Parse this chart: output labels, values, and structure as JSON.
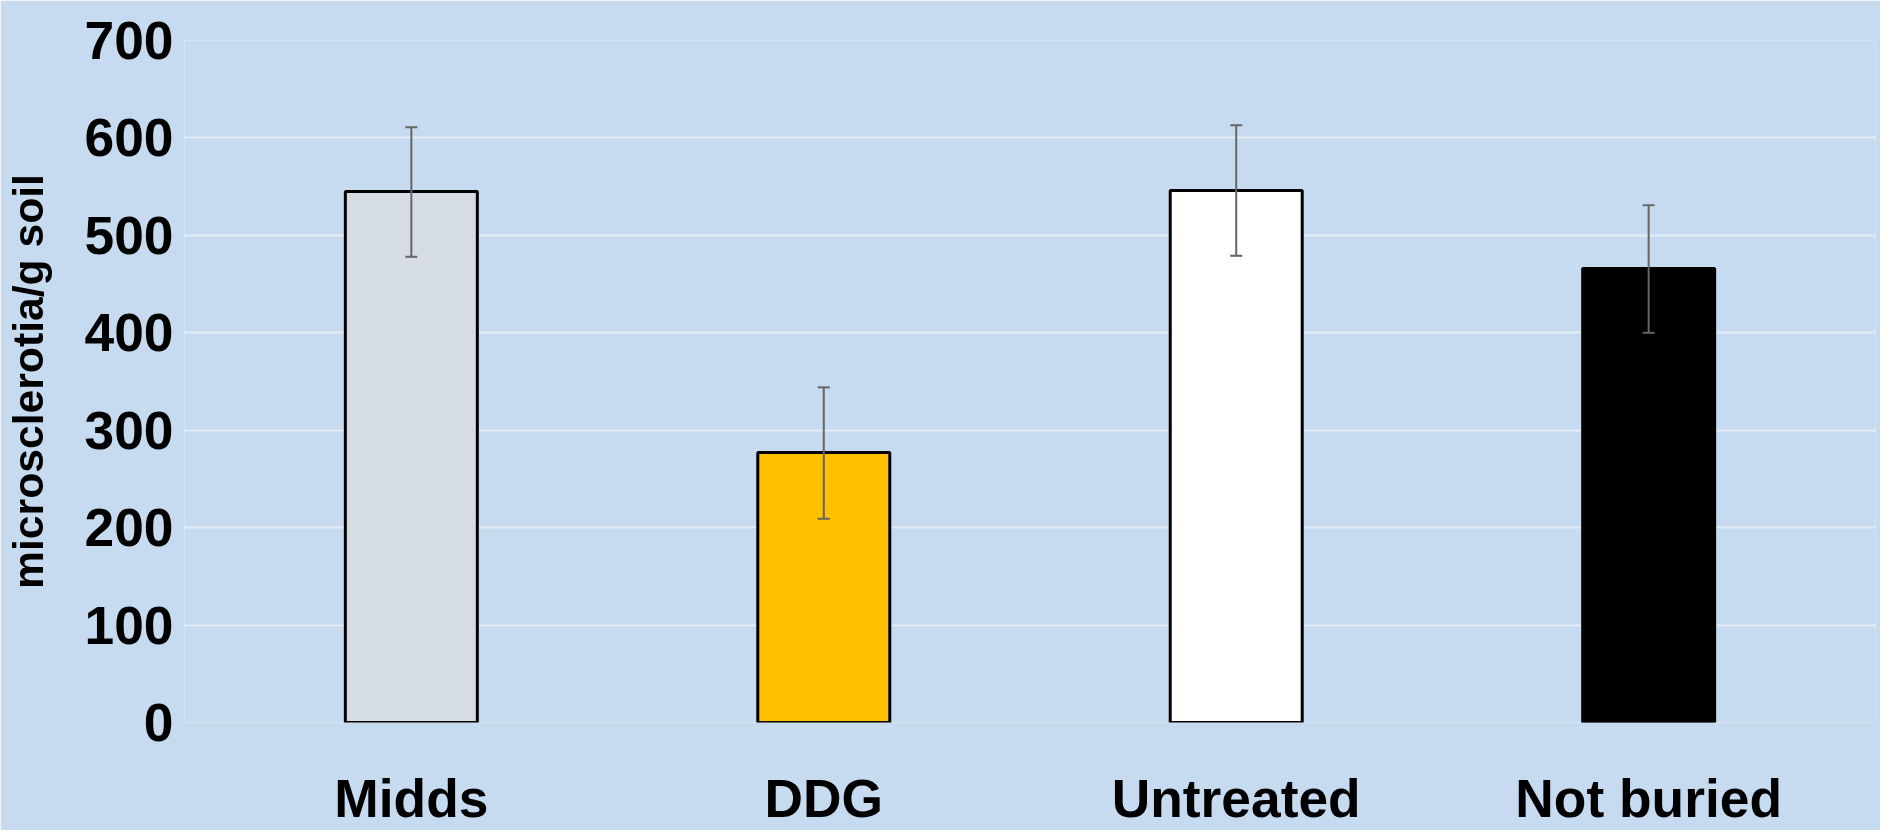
{
  "chart_data": {
    "type": "bar",
    "ylabel": "microsclerotia/g soil",
    "categories": [
      "Midds",
      "DDG",
      "Untreated",
      "Not buried"
    ],
    "values": [
      545,
      277,
      546,
      466
    ],
    "colors": [
      "#d6dce4",
      "#ffc000",
      "#ffffff",
      "#000000"
    ],
    "errors": [
      [
        478,
        611
      ],
      [
        209,
        344
      ],
      [
        479,
        613
      ],
      [
        400,
        531
      ]
    ],
    "ylim": [
      0,
      700
    ],
    "yticks": [
      0,
      100,
      200,
      300,
      400,
      500,
      600,
      700
    ],
    "grid": "y"
  }
}
